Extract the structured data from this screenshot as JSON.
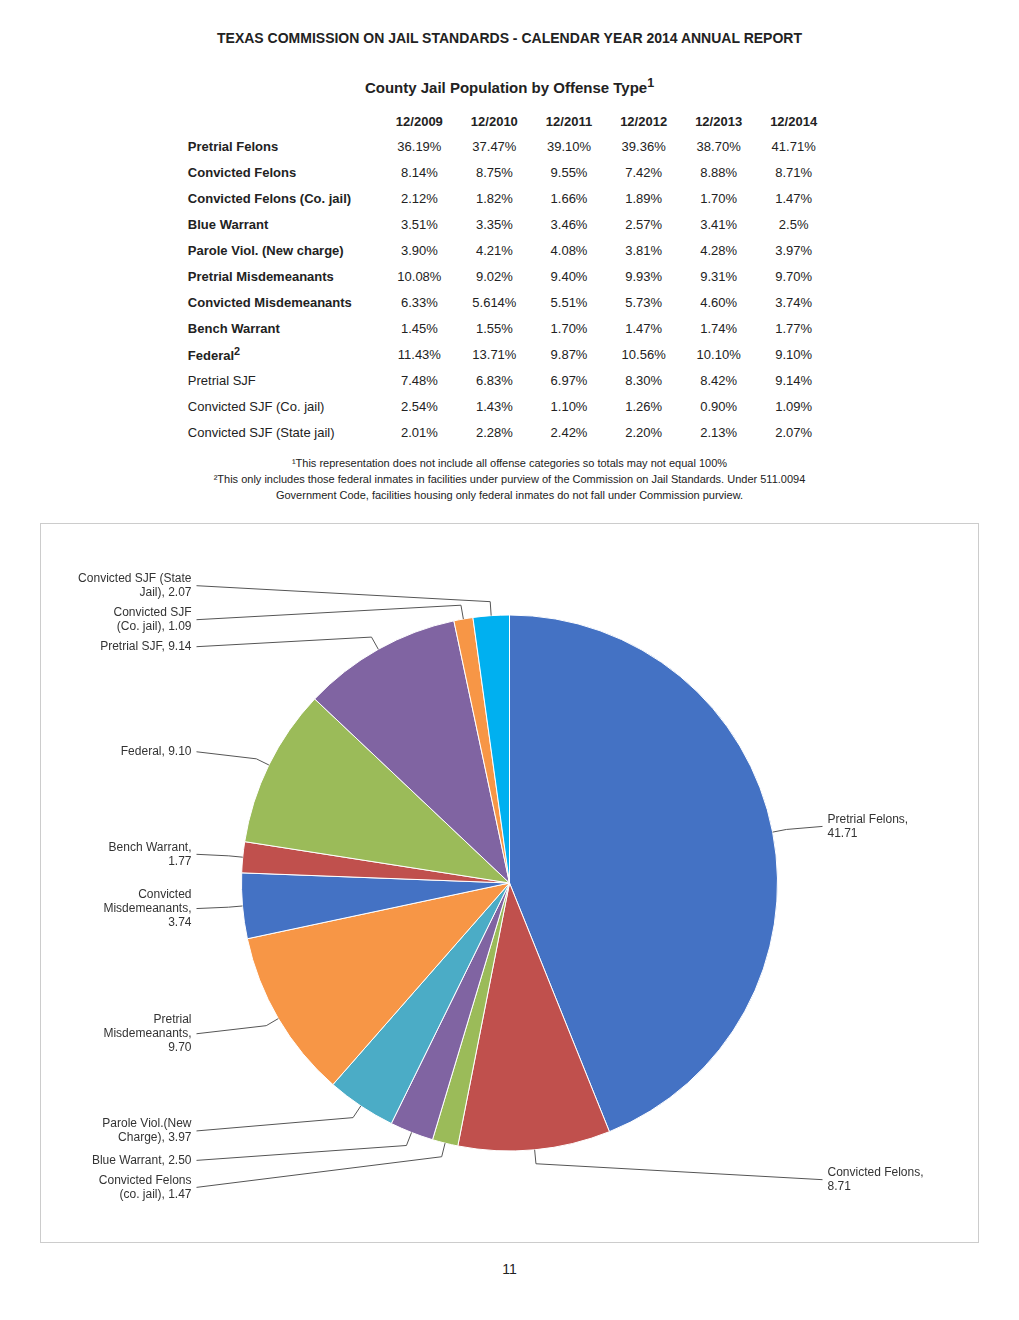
{
  "page_title": "TEXAS COMMISSION ON JAIL STANDARDS - CALENDAR YEAR 2014 ANNUAL REPORT",
  "table": {
    "title": "County Jail Population by Offense Type",
    "title_superscript": "1",
    "columns": [
      "12/2009",
      "12/2010",
      "12/2011",
      "12/2012",
      "12/2013",
      "12/2014"
    ],
    "rows": [
      {
        "label": "Pretrial Felons",
        "bold": true,
        "sup": "",
        "values": [
          "36.19%",
          "37.47%",
          "39.10%",
          "39.36%",
          "38.70%",
          "41.71%"
        ]
      },
      {
        "label": "Convicted Felons",
        "bold": true,
        "sup": "",
        "values": [
          "8.14%",
          "8.75%",
          "9.55%",
          "7.42%",
          "8.88%",
          "8.71%"
        ]
      },
      {
        "label": "Convicted Felons (Co. jail)",
        "bold": true,
        "sup": "",
        "values": [
          "2.12%",
          "1.82%",
          "1.66%",
          "1.89%",
          "1.70%",
          "1.47%"
        ]
      },
      {
        "label": "Blue Warrant",
        "bold": true,
        "sup": "",
        "values": [
          "3.51%",
          "3.35%",
          "3.46%",
          "2.57%",
          "3.41%",
          "2.5%"
        ]
      },
      {
        "label": "Parole Viol. (New charge)",
        "bold": true,
        "sup": "",
        "values": [
          "3.90%",
          "4.21%",
          "4.08%",
          "3.81%",
          "4.28%",
          "3.97%"
        ]
      },
      {
        "label": "Pretrial Misdemeanants",
        "bold": true,
        "sup": "",
        "values": [
          "10.08%",
          "9.02%",
          "9.40%",
          "9.93%",
          "9.31%",
          "9.70%"
        ]
      },
      {
        "label": "Convicted Misdemeanants",
        "bold": true,
        "sup": "",
        "values": [
          "6.33%",
          "5.614%",
          "5.51%",
          "5.73%",
          "4.60%",
          "3.74%"
        ]
      },
      {
        "label": "Bench Warrant",
        "bold": true,
        "sup": "",
        "values": [
          "1.45%",
          "1.55%",
          "1.70%",
          "1.47%",
          "1.74%",
          "1.77%"
        ]
      },
      {
        "label": "Federal",
        "bold": true,
        "sup": "2",
        "values": [
          "11.43%",
          "13.71%",
          "9.87%",
          "10.56%",
          "10.10%",
          "9.10%"
        ]
      },
      {
        "label": "Pretrial SJF",
        "bold": false,
        "sup": "",
        "values": [
          "7.48%",
          "6.83%",
          "6.97%",
          "8.30%",
          "8.42%",
          "9.14%"
        ]
      },
      {
        "label": "Convicted SJF (Co. jail)",
        "bold": false,
        "sup": "",
        "values": [
          "2.54%",
          "1.43%",
          "1.10%",
          "1.26%",
          "0.90%",
          "1.09%"
        ]
      },
      {
        "label": "Convicted SJF (State jail)",
        "bold": false,
        "sup": "",
        "values": [
          "2.01%",
          "2.28%",
          "2.42%",
          "2.20%",
          "2.13%",
          "2.07%"
        ]
      }
    ]
  },
  "footnotes": [
    "¹This representation does not include all offense categories so totals may not equal 100%",
    "²This only includes those federal inmates in facilities under purview of the Commission on Jail Standards.  Under 511.0094",
    "Government Code, facilities housing only federal inmates do not fall under Commission purview."
  ],
  "page_number": "11",
  "chart_data": {
    "type": "pie",
    "categories": [
      "Pretrial Felons,\n41.71",
      "Convicted Felons,\n8.71",
      "Convicted Felons\n(co. jail), 1.47",
      "Blue Warrant, 2.50",
      "Parole Viol.(New\nCharge), 3.97",
      "Pretrial\nMisdemeanants,\n9.70",
      "Convicted\nMisdemeanants,\n3.74",
      "Bench Warrant,\n1.77",
      "Federal, 9.10",
      "Pretrial SJF, 9.14",
      "Convicted SJF\n(Co. jail), 1.09",
      "Convicted SJF (State\nJail), 2.07"
    ],
    "values": [
      41.71,
      8.71,
      1.47,
      2.5,
      3.97,
      9.7,
      3.74,
      1.77,
      9.1,
      9.14,
      1.09,
      2.07
    ],
    "colors": [
      "#4472C4",
      "#C0504D",
      "#9BBB59",
      "#8064A2",
      "#4BACC6",
      "#F79646",
      "#4472C4",
      "#C0504D",
      "#9BBB59",
      "#8064A2",
      "#F79646",
      "#00B0F0"
    ]
  }
}
